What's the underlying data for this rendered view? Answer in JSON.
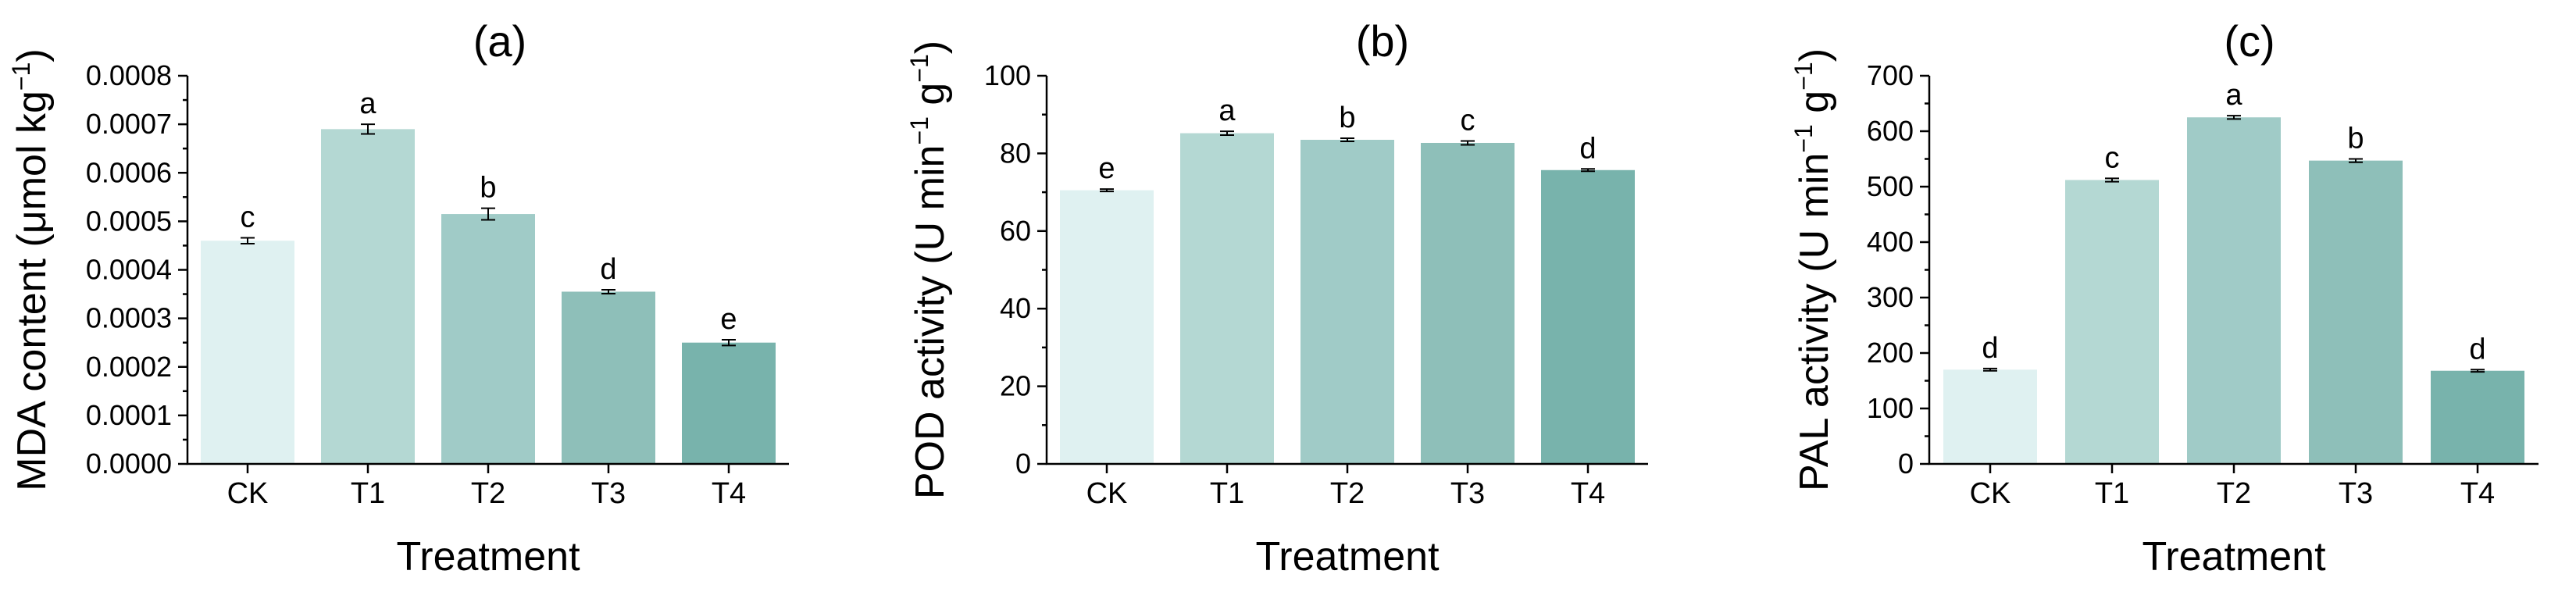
{
  "colors": {
    "CK": "#dff1f1",
    "T1": "#b4d8d3",
    "T2": "#a0cbc7",
    "T3": "#8ebfb9",
    "T4": "#78b3ac",
    "axis": "#000000"
  },
  "chart_data": [
    {
      "type": "bar",
      "title": "(a)",
      "xlabel": "Treatment",
      "ylabel": "MDA content (μmol kg",
      "ylabel_sup": "−1",
      "ylabel_suffix": ")",
      "ylim": [
        0,
        0.0008
      ],
      "yticks": [
        0,
        0.0001,
        0.0002,
        0.0003,
        0.0004,
        0.0005,
        0.0006,
        0.0007,
        0.0008
      ],
      "ytick_labels": [
        "0.0000",
        "0.0001",
        "0.0002",
        "0.0003",
        "0.0004",
        "0.0005",
        "0.0006",
        "0.0007",
        "0.0008"
      ],
      "categories": [
        "CK",
        "T1",
        "T2",
        "T3",
        "T4"
      ],
      "values": [
        0.00046,
        0.00069,
        0.000515,
        0.000355,
        0.00025
      ],
      "errors": [
        6e-06,
        1e-05,
        1.2e-05,
        4e-06,
        6e-06
      ],
      "letters": [
        "c",
        "a",
        "b",
        "d",
        "e"
      ]
    },
    {
      "type": "bar",
      "title": "(b)",
      "xlabel": "Treatment",
      "ylabel": "POD activity (U min",
      "ylabel_sup": "−1",
      "ylabel_mid": " g",
      "ylabel_sup2": "−1",
      "ylabel_suffix": ")",
      "ylim": [
        0,
        100
      ],
      "yticks": [
        0,
        20,
        40,
        60,
        80,
        100
      ],
      "ytick_labels": [
        "0",
        "20",
        "40",
        "60",
        "80",
        "100"
      ],
      "categories": [
        "CK",
        "T1",
        "T2",
        "T3",
        "T4"
      ],
      "values": [
        70.5,
        85.2,
        83.5,
        82.7,
        75.7
      ],
      "errors": [
        0.3,
        0.5,
        0.4,
        0.5,
        0.3
      ],
      "letters": [
        "e",
        "a",
        "b",
        "c",
        "d"
      ]
    },
    {
      "type": "bar",
      "title": "(c)",
      "xlabel": "Treatment",
      "ylabel": "PAL activity (U min",
      "ylabel_sup": "−1",
      "ylabel_mid": " g",
      "ylabel_sup2": "−1",
      "ylabel_suffix": ")",
      "ylim": [
        0,
        700
      ],
      "yticks": [
        0,
        100,
        200,
        300,
        400,
        500,
        600,
        700
      ],
      "ytick_labels": [
        "0",
        "100",
        "200",
        "300",
        "400",
        "500",
        "600",
        "700"
      ],
      "categories": [
        "CK",
        "T1",
        "T2",
        "T3",
        "T4"
      ],
      "values": [
        170,
        512,
        625,
        547,
        168
      ],
      "errors": [
        2,
        3,
        3,
        3,
        2
      ],
      "letters": [
        "d",
        "c",
        "a",
        "b",
        "d"
      ]
    }
  ]
}
